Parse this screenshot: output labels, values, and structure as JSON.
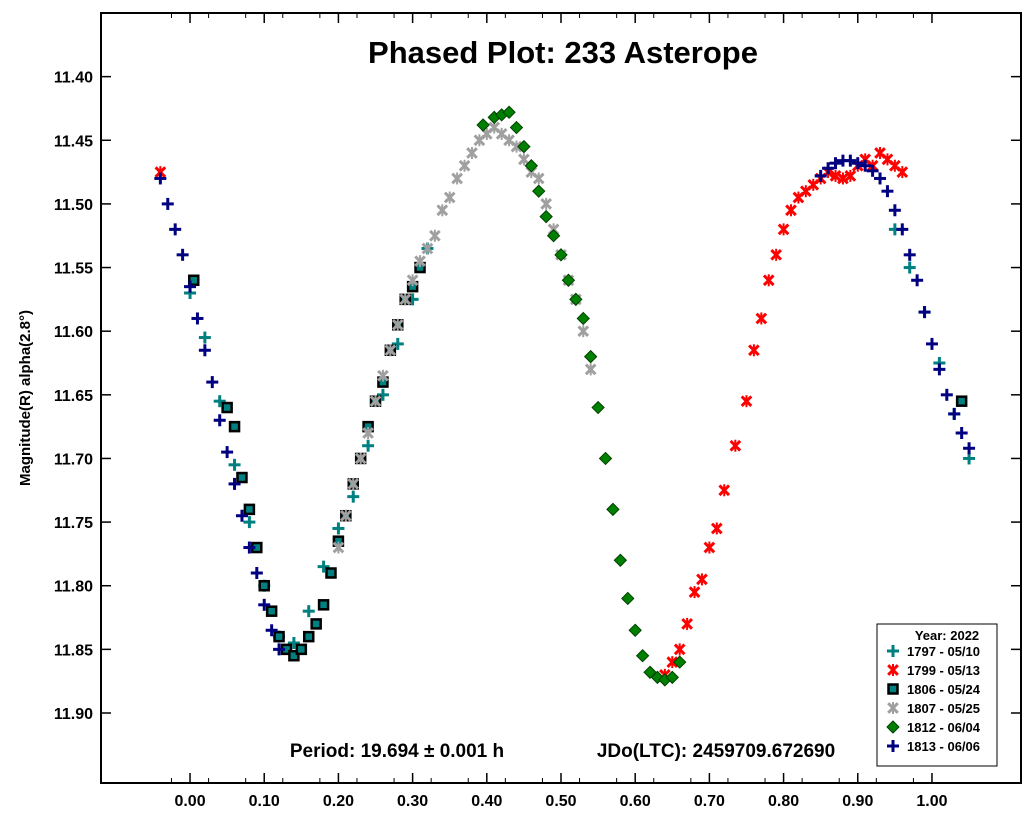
{
  "chart_data": {
    "type": "scatter",
    "title": "Phased Plot: 233 Asterope",
    "xlabel": "",
    "ylabel": "Magnitude(R) alpha(2.8°)",
    "xlim": [
      -0.12,
      1.12
    ],
    "ylim": [
      11.955,
      11.35
    ],
    "y_inverted": true,
    "grid": false,
    "x_ticks": [
      "0.00",
      "0.10",
      "0.20",
      "0.30",
      "0.40",
      "0.50",
      "0.60",
      "0.70",
      "0.80",
      "0.90",
      "1.00"
    ],
    "y_ticks": [
      "11.40",
      "11.45",
      "11.50",
      "11.55",
      "11.60",
      "11.65",
      "11.70",
      "11.75",
      "11.80",
      "11.85",
      "11.90"
    ],
    "period_text": "Period: 19.694 ± 0.001 h",
    "epoch_text": "JDo(LTC): 2459709.672690",
    "legend_title": "Year: 2022",
    "legend_position": "bottom-right",
    "series": [
      {
        "name": "1797 - 05/10",
        "color": "#008080",
        "marker": "plus",
        "x": [
          0.0,
          0.02,
          0.04,
          0.06,
          0.08,
          0.1,
          0.12,
          0.14,
          0.16,
          0.18,
          0.2,
          0.22,
          0.24,
          0.26,
          0.28,
          0.3,
          0.32,
          0.95,
          0.97,
          0.99,
          1.01,
          1.03,
          1.05
        ],
        "y": [
          11.57,
          11.605,
          11.655,
          11.705,
          11.75,
          11.8,
          11.84,
          11.845,
          11.82,
          11.785,
          11.755,
          11.73,
          11.69,
          11.65,
          11.61,
          11.575,
          11.535,
          11.52,
          11.55,
          11.585,
          11.625,
          11.665,
          11.7
        ]
      },
      {
        "name": "1799 - 05/13",
        "color": "#ff0000",
        "marker": "asterisk",
        "x": [
          -0.04,
          0.64,
          0.65,
          0.66,
          0.67,
          0.68,
          0.69,
          0.7,
          0.71,
          0.72,
          0.735,
          0.75,
          0.76,
          0.77,
          0.78,
          0.79,
          0.8,
          0.81,
          0.82,
          0.83,
          0.84,
          0.85,
          0.86,
          0.87,
          0.88,
          0.89,
          0.9,
          0.91,
          0.92,
          0.93,
          0.94,
          0.95,
          0.96
        ],
        "y": [
          11.475,
          11.87,
          11.86,
          11.85,
          11.83,
          11.805,
          11.795,
          11.77,
          11.755,
          11.725,
          11.69,
          11.655,
          11.615,
          11.59,
          11.56,
          11.54,
          11.52,
          11.505,
          11.495,
          11.49,
          11.485,
          11.48,
          11.475,
          11.478,
          11.48,
          11.478,
          11.47,
          11.465,
          11.47,
          11.46,
          11.465,
          11.47,
          11.475
        ]
      },
      {
        "name": "1806 - 05/24",
        "color": "#008080",
        "marker": "square",
        "x": [
          0.005,
          0.05,
          0.06,
          0.07,
          0.08,
          0.09,
          0.1,
          0.11,
          0.12,
          0.13,
          0.14,
          0.15,
          0.16,
          0.17,
          0.18,
          0.19,
          0.2,
          0.21,
          0.22,
          0.23,
          0.24,
          0.25,
          0.26,
          0.27,
          0.28,
          0.29,
          0.3,
          0.31,
          1.04
        ],
        "y": [
          11.56,
          11.66,
          11.675,
          11.715,
          11.74,
          11.77,
          11.8,
          11.82,
          11.84,
          11.85,
          11.855,
          11.85,
          11.84,
          11.83,
          11.815,
          11.79,
          11.765,
          11.745,
          11.72,
          11.7,
          11.675,
          11.655,
          11.64,
          11.615,
          11.595,
          11.575,
          11.565,
          11.55,
          11.655
        ]
      },
      {
        "name": "1807 - 05/25",
        "color": "#a0a0a0",
        "marker": "asterisk",
        "x": [
          0.2,
          0.21,
          0.22,
          0.23,
          0.24,
          0.25,
          0.26,
          0.27,
          0.28,
          0.29,
          0.3,
          0.31,
          0.32,
          0.33,
          0.34,
          0.35,
          0.36,
          0.37,
          0.38,
          0.39,
          0.4,
          0.41,
          0.42,
          0.43,
          0.44,
          0.45,
          0.46,
          0.47,
          0.48,
          0.49,
          0.5,
          0.51,
          0.52,
          0.53,
          0.54
        ],
        "y": [
          11.77,
          11.745,
          11.72,
          11.7,
          11.68,
          11.655,
          11.635,
          11.615,
          11.595,
          11.575,
          11.56,
          11.545,
          11.535,
          11.525,
          11.505,
          11.495,
          11.48,
          11.47,
          11.46,
          11.45,
          11.445,
          11.44,
          11.445,
          11.45,
          11.455,
          11.465,
          11.475,
          11.48,
          11.5,
          11.52,
          11.54,
          11.56,
          11.575,
          11.6,
          11.63
        ]
      },
      {
        "name": "1812 - 06/04",
        "color": "#008000",
        "marker": "diamond",
        "x": [
          0.395,
          0.41,
          0.42,
          0.43,
          0.44,
          0.45,
          0.46,
          0.47,
          0.48,
          0.49,
          0.5,
          0.51,
          0.52,
          0.53,
          0.54,
          0.55,
          0.56,
          0.57,
          0.58,
          0.59,
          0.6,
          0.61,
          0.62,
          0.63,
          0.64,
          0.65,
          0.66
        ],
        "y": [
          11.438,
          11.432,
          11.43,
          11.428,
          11.44,
          11.455,
          11.47,
          11.49,
          11.51,
          11.525,
          11.54,
          11.56,
          11.575,
          11.59,
          11.62,
          11.66,
          11.7,
          11.74,
          11.78,
          11.81,
          11.835,
          11.855,
          11.868,
          11.872,
          11.874,
          11.872,
          11.86
        ]
      },
      {
        "name": "1813 - 06/06",
        "color": "#000080",
        "marker": "plus",
        "x": [
          -0.04,
          -0.03,
          -0.02,
          -0.01,
          0.0,
          0.01,
          0.02,
          0.03,
          0.04,
          0.05,
          0.06,
          0.07,
          0.08,
          0.09,
          0.1,
          0.11,
          0.12,
          0.85,
          0.86,
          0.87,
          0.88,
          0.89,
          0.9,
          0.91,
          0.92,
          0.93,
          0.94,
          0.95,
          0.96,
          0.97,
          0.98,
          0.99,
          1.0,
          1.01,
          1.02,
          1.03,
          1.04,
          1.05
        ],
        "y": [
          11.48,
          11.5,
          11.52,
          11.54,
          11.565,
          11.59,
          11.615,
          11.64,
          11.67,
          11.695,
          11.72,
          11.745,
          11.77,
          11.79,
          11.815,
          11.835,
          11.85,
          11.478,
          11.472,
          11.468,
          11.466,
          11.466,
          11.468,
          11.47,
          11.474,
          11.48,
          11.49,
          11.505,
          11.52,
          11.54,
          11.56,
          11.585,
          11.61,
          11.63,
          11.65,
          11.665,
          11.68,
          11.692
        ]
      }
    ]
  }
}
